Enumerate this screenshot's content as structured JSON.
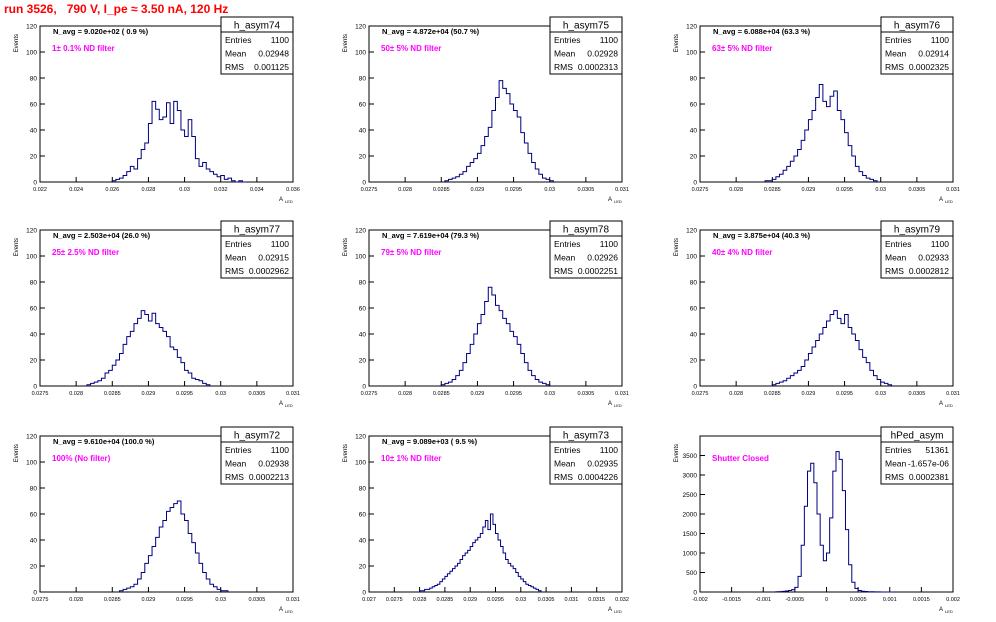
{
  "run_title": "run 3526,   790 V, I_pe ≈ 3.50 nA, 120 Hz",
  "colors": {
    "title": "#ff0000",
    "hist": "#000080",
    "filter_label": "#ff00ff",
    "axes": "#000000"
  },
  "ytitle": "Events",
  "xtitle_main": "A",
  "xtitle_sub": "LED",
  "stat_labels": {
    "entries": "Entries",
    "mean": "Mean",
    "rms": "RMS"
  },
  "chart_data": [
    {
      "type": "histogram",
      "name": "h_asym74",
      "navg": "N_avg = 9.020e+02 ( 0.9 %)",
      "label": "1± 0.1% ND filter",
      "entries": "1100",
      "mean": "0.02948",
      "rms": "0.001125",
      "xlim": [
        0.022,
        0.036
      ],
      "xticks": [
        "0.022",
        "0.024",
        "0.026",
        "0.028",
        "0.03",
        "0.032",
        "0.034",
        "0.036"
      ],
      "ylim": [
        0,
        120
      ],
      "yticks": [
        "0",
        "20",
        "40",
        "60",
        "80",
        "100",
        "120"
      ],
      "bins_x": [
        0.026,
        0.0262,
        0.0264,
        0.0266,
        0.0268,
        0.027,
        0.0272,
        0.0274,
        0.0276,
        0.0278,
        0.028,
        0.0282,
        0.0284,
        0.0286,
        0.0288,
        0.029,
        0.0292,
        0.0294,
        0.0296,
        0.0298,
        0.03,
        0.0302,
        0.0304,
        0.0306,
        0.0308,
        0.031,
        0.0312,
        0.0314,
        0.0316,
        0.0318,
        0.032,
        0.0322,
        0.0324,
        0.0326,
        0.0328,
        0.033,
        0.0332
      ],
      "bins_y": [
        1,
        2,
        3,
        5,
        8,
        12,
        10,
        18,
        25,
        30,
        45,
        62,
        56,
        48,
        50,
        61,
        45,
        62,
        55,
        40,
        35,
        48,
        35,
        18,
        12,
        15,
        10,
        8,
        6,
        4,
        5,
        2,
        3,
        1,
        0,
        1,
        0
      ]
    },
    {
      "type": "histogram",
      "name": "h_asym75",
      "navg": "N_avg = 4.872e+04 (50.7 %)",
      "label": "50± 5% ND filter",
      "entries": "1100",
      "mean": "0.02928",
      "rms": "0.0002313",
      "xlim": [
        0.0275,
        0.031
      ],
      "xticks": [
        "0.0275",
        "0.028",
        "0.0285",
        "0.029",
        "0.0295",
        "0.03",
        "0.0305",
        "0.031"
      ],
      "ylim": [
        0,
        120
      ],
      "yticks": [
        "0",
        "20",
        "40",
        "60",
        "80",
        "100",
        "120"
      ],
      "bins_x": [
        0.02855,
        0.0286,
        0.02865,
        0.0287,
        0.02875,
        0.0288,
        0.02885,
        0.0289,
        0.02895,
        0.029,
        0.02905,
        0.0291,
        0.02915,
        0.0292,
        0.02925,
        0.0293,
        0.02935,
        0.0294,
        0.02945,
        0.0295,
        0.02955,
        0.0296,
        0.02965,
        0.0297,
        0.02975,
        0.0298,
        0.02985,
        0.0299,
        0.02995,
        0.03
      ],
      "bins_y": [
        1,
        2,
        3,
        4,
        6,
        8,
        12,
        15,
        18,
        22,
        28,
        35,
        42,
        55,
        65,
        78,
        72,
        68,
        60,
        55,
        50,
        38,
        30,
        22,
        15,
        10,
        6,
        3,
        2,
        1
      ]
    },
    {
      "type": "histogram",
      "name": "h_asym76",
      "navg": "N_avg = 6.088e+04 (63.3 %)",
      "label": "63± 5% ND filter",
      "entries": "1100",
      "mean": "0.02914",
      "rms": "0.0002325",
      "xlim": [
        0.0275,
        0.031
      ],
      "xticks": [
        "0.0275",
        "0.028",
        "0.0285",
        "0.029",
        "0.0295",
        "0.03",
        "0.0305",
        "0.031"
      ],
      "ylim": [
        0,
        120
      ],
      "yticks": [
        "0",
        "20",
        "40",
        "60",
        "80",
        "100",
        "120"
      ],
      "bins_x": [
        0.0284,
        0.02845,
        0.0285,
        0.02855,
        0.0286,
        0.02865,
        0.0287,
        0.02875,
        0.0288,
        0.02885,
        0.0289,
        0.02895,
        0.029,
        0.02905,
        0.0291,
        0.02915,
        0.0292,
        0.02925,
        0.0293,
        0.02935,
        0.0294,
        0.02945,
        0.0295,
        0.02955,
        0.0296,
        0.02965,
        0.0297,
        0.02975,
        0.0298,
        0.02985,
        0.0299
      ],
      "bins_y": [
        1,
        1,
        2,
        4,
        6,
        9,
        12,
        16,
        20,
        25,
        32,
        40,
        48,
        55,
        65,
        75,
        62,
        58,
        66,
        70,
        55,
        48,
        38,
        28,
        20,
        12,
        8,
        5,
        3,
        2,
        1
      ]
    },
    {
      "type": "histogram",
      "name": "h_asym77",
      "navg": "N_avg = 2.503e+04 (26.0 %)",
      "label": "25± 2.5% ND filter",
      "entries": "1100",
      "mean": "0.02915",
      "rms": "0.0002962",
      "xlim": [
        0.0275,
        0.031
      ],
      "xticks": [
        "0.0275",
        "0.028",
        "0.0285",
        "0.029",
        "0.0295",
        "0.03",
        "0.0305",
        "0.031"
      ],
      "ylim": [
        0,
        120
      ],
      "yticks": [
        "0",
        "20",
        "40",
        "60",
        "80",
        "100",
        "120"
      ],
      "bins_x": [
        0.02815,
        0.0282,
        0.02825,
        0.0283,
        0.02835,
        0.0284,
        0.02845,
        0.0285,
        0.02855,
        0.0286,
        0.02865,
        0.0287,
        0.02875,
        0.0288,
        0.02885,
        0.0289,
        0.02895,
        0.029,
        0.02905,
        0.0291,
        0.02915,
        0.0292,
        0.02925,
        0.0293,
        0.02935,
        0.0294,
        0.02945,
        0.0295,
        0.02955,
        0.0296,
        0.02965,
        0.0297,
        0.02975,
        0.0298
      ],
      "bins_y": [
        1,
        2,
        3,
        4,
        6,
        10,
        12,
        16,
        20,
        25,
        32,
        38,
        42,
        48,
        52,
        58,
        55,
        50,
        56,
        48,
        45,
        42,
        38,
        30,
        28,
        22,
        18,
        12,
        10,
        6,
        5,
        4,
        2,
        1
      ]
    },
    {
      "type": "histogram",
      "name": "h_asym78",
      "navg": "N_avg = 7.619e+04 (79.3 %)",
      "label": "79± 5% ND filter",
      "entries": "1100",
      "mean": "0.02926",
      "rms": "0.0002251",
      "xlim": [
        0.0275,
        0.031
      ],
      "xticks": [
        "0.0275",
        "0.028",
        "0.0285",
        "0.029",
        "0.0295",
        "0.03",
        "0.0305",
        "0.031"
      ],
      "ylim": [
        0,
        120
      ],
      "yticks": [
        "0",
        "20",
        "40",
        "60",
        "80",
        "100",
        "120"
      ],
      "bins_x": [
        0.0285,
        0.02855,
        0.0286,
        0.02865,
        0.0287,
        0.02875,
        0.0288,
        0.02885,
        0.0289,
        0.02895,
        0.029,
        0.02905,
        0.0291,
        0.02915,
        0.0292,
        0.02925,
        0.0293,
        0.02935,
        0.0294,
        0.02945,
        0.0295,
        0.02955,
        0.0296,
        0.02965,
        0.0297,
        0.02975,
        0.0298,
        0.02985,
        0.0299,
        0.02995
      ],
      "bins_y": [
        1,
        2,
        3,
        5,
        8,
        12,
        18,
        25,
        32,
        40,
        48,
        55,
        65,
        76,
        70,
        62,
        58,
        52,
        48,
        42,
        38,
        32,
        25,
        18,
        12,
        8,
        5,
        3,
        2,
        1
      ]
    },
    {
      "type": "histogram",
      "name": "h_asym79",
      "navg": "N_avg = 3.875e+04 (40.3 %)",
      "label": "40± 4% ND filter",
      "entries": "1100",
      "mean": "0.02933",
      "rms": "0.0002812",
      "xlim": [
        0.0275,
        0.031
      ],
      "xticks": [
        "0.0275",
        "0.028",
        "0.0285",
        "0.029",
        "0.0295",
        "0.03",
        "0.0305",
        "0.031"
      ],
      "ylim": [
        0,
        120
      ],
      "yticks": [
        "0",
        "20",
        "40",
        "60",
        "80",
        "100",
        "120"
      ],
      "bins_x": [
        0.0285,
        0.02855,
        0.0286,
        0.02865,
        0.0287,
        0.02875,
        0.0288,
        0.02885,
        0.0289,
        0.02895,
        0.029,
        0.02905,
        0.0291,
        0.02915,
        0.0292,
        0.02925,
        0.0293,
        0.02935,
        0.0294,
        0.02945,
        0.0295,
        0.02955,
        0.0296,
        0.02965,
        0.0297,
        0.02975,
        0.0298,
        0.02985,
        0.0299,
        0.02995,
        0.03,
        0.03005,
        0.0301
      ],
      "bins_y": [
        1,
        2,
        3,
        4,
        6,
        8,
        10,
        12,
        15,
        20,
        25,
        30,
        35,
        40,
        45,
        50,
        55,
        58,
        52,
        48,
        55,
        45,
        40,
        35,
        28,
        22,
        18,
        12,
        8,
        5,
        3,
        2,
        1
      ]
    },
    {
      "type": "histogram",
      "name": "h_asym72",
      "navg": "N_avg = 9.610e+04 (100.0 %)",
      "label": "100% (No filter)",
      "entries": "1100",
      "mean": "0.02938",
      "rms": "0.0002213",
      "xlim": [
        0.0275,
        0.031
      ],
      "xticks": [
        "0.0275",
        "0.028",
        "0.0285",
        "0.029",
        "0.0295",
        "0.03",
        "0.0305",
        "0.031"
      ],
      "ylim": [
        0,
        120
      ],
      "yticks": [
        "0",
        "20",
        "40",
        "60",
        "80",
        "100",
        "120"
      ],
      "bins_x": [
        0.0286,
        0.02865,
        0.0287,
        0.02875,
        0.0288,
        0.02885,
        0.0289,
        0.02895,
        0.029,
        0.02905,
        0.0291,
        0.02915,
        0.0292,
        0.02925,
        0.0293,
        0.02935,
        0.0294,
        0.02945,
        0.0295,
        0.02955,
        0.0296,
        0.02965,
        0.0297,
        0.02975,
        0.0298,
        0.02985,
        0.0299,
        0.02995,
        0.03,
        0.03005
      ],
      "bins_y": [
        1,
        2,
        3,
        4,
        6,
        10,
        15,
        22,
        28,
        35,
        42,
        50,
        55,
        62,
        65,
        68,
        70,
        60,
        55,
        45,
        38,
        30,
        22,
        15,
        10,
        6,
        4,
        2,
        1,
        1
      ]
    },
    {
      "type": "histogram",
      "name": "h_asym73",
      "navg": "N_avg = 9.089e+03 ( 9.5 %)",
      "label": "10± 1% ND filter",
      "entries": "1100",
      "mean": "0.02935",
      "rms": "0.0004226",
      "xlim": [
        0.027,
        0.032
      ],
      "xticks": [
        "0.027",
        "0.0275",
        "0.028",
        "0.0285",
        "0.029",
        "0.0295",
        "0.03",
        "0.0305",
        "0.031",
        "0.0315",
        "0.032"
      ],
      "ylim": [
        0,
        120
      ],
      "yticks": [
        "0",
        "20",
        "40",
        "60",
        "80",
        "100",
        "120"
      ],
      "bins_x": [
        0.028,
        0.02805,
        0.0281,
        0.02815,
        0.0282,
        0.02825,
        0.0283,
        0.02835,
        0.0284,
        0.02845,
        0.0285,
        0.02855,
        0.0286,
        0.02865,
        0.0287,
        0.02875,
        0.0288,
        0.02885,
        0.0289,
        0.02895,
        0.029,
        0.02905,
        0.0291,
        0.02915,
        0.0292,
        0.02925,
        0.0293,
        0.02935,
        0.0294,
        0.02945,
        0.0295,
        0.02955,
        0.0296,
        0.02965,
        0.0297,
        0.02975,
        0.0298,
        0.02985,
        0.0299,
        0.02995,
        0.03,
        0.03005,
        0.0301,
        0.03015,
        0.0302,
        0.03025,
        0.0303,
        0.03035
      ],
      "bins_y": [
        1,
        1,
        2,
        2,
        3,
        4,
        5,
        6,
        8,
        10,
        12,
        14,
        16,
        18,
        20,
        22,
        25,
        28,
        30,
        32,
        35,
        38,
        40,
        42,
        45,
        50,
        55,
        48,
        60,
        52,
        45,
        40,
        35,
        30,
        25,
        22,
        20,
        18,
        15,
        12,
        10,
        8,
        6,
        5,
        4,
        3,
        2,
        1
      ]
    },
    {
      "type": "histogram",
      "name": "hPed_asym",
      "navg": "",
      "label": "Shutter Closed",
      "entries": "51361",
      "mean": "-1.657e-06",
      "rms": "0.0002381",
      "xlim": [
        -0.002,
        0.002
      ],
      "xticks": [
        "-0.002",
        "-0.0015",
        "-0.001",
        "-0.0005",
        "0",
        "0.0005",
        "0.001",
        "0.0015",
        "0.002"
      ],
      "ylim": [
        0,
        4000
      ],
      "yticks": [
        "0",
        "500",
        "1000",
        "1500",
        "2000",
        "2500",
        "3000",
        "3500"
      ],
      "bins_x": [
        -0.0008,
        -0.00075,
        -0.0007,
        -0.00065,
        -0.0006,
        -0.00055,
        -0.0005,
        -0.00045,
        -0.0004,
        -0.00035,
        -0.0003,
        -0.00025,
        -0.0002,
        -0.00015,
        -0.0001,
        -5e-05,
        0.0,
        5e-05,
        0.0001,
        0.00015,
        0.0002,
        0.00025,
        0.0003,
        0.00035,
        0.0004,
        0.00045,
        0.0005,
        0.00055,
        0.0006,
        0.00065,
        0.0007,
        0.00075,
        0.0008,
        0.00085,
        0.0009,
        0.00095,
        0.001
      ],
      "bins_y": [
        5,
        10,
        15,
        25,
        40,
        60,
        120,
        400,
        1200,
        2200,
        3100,
        3300,
        2800,
        2000,
        1200,
        800,
        1000,
        1900,
        3100,
        3600,
        3400,
        2600,
        1600,
        700,
        250,
        90,
        40,
        20,
        12,
        8,
        5,
        3,
        2,
        1,
        1,
        0,
        0
      ]
    }
  ]
}
